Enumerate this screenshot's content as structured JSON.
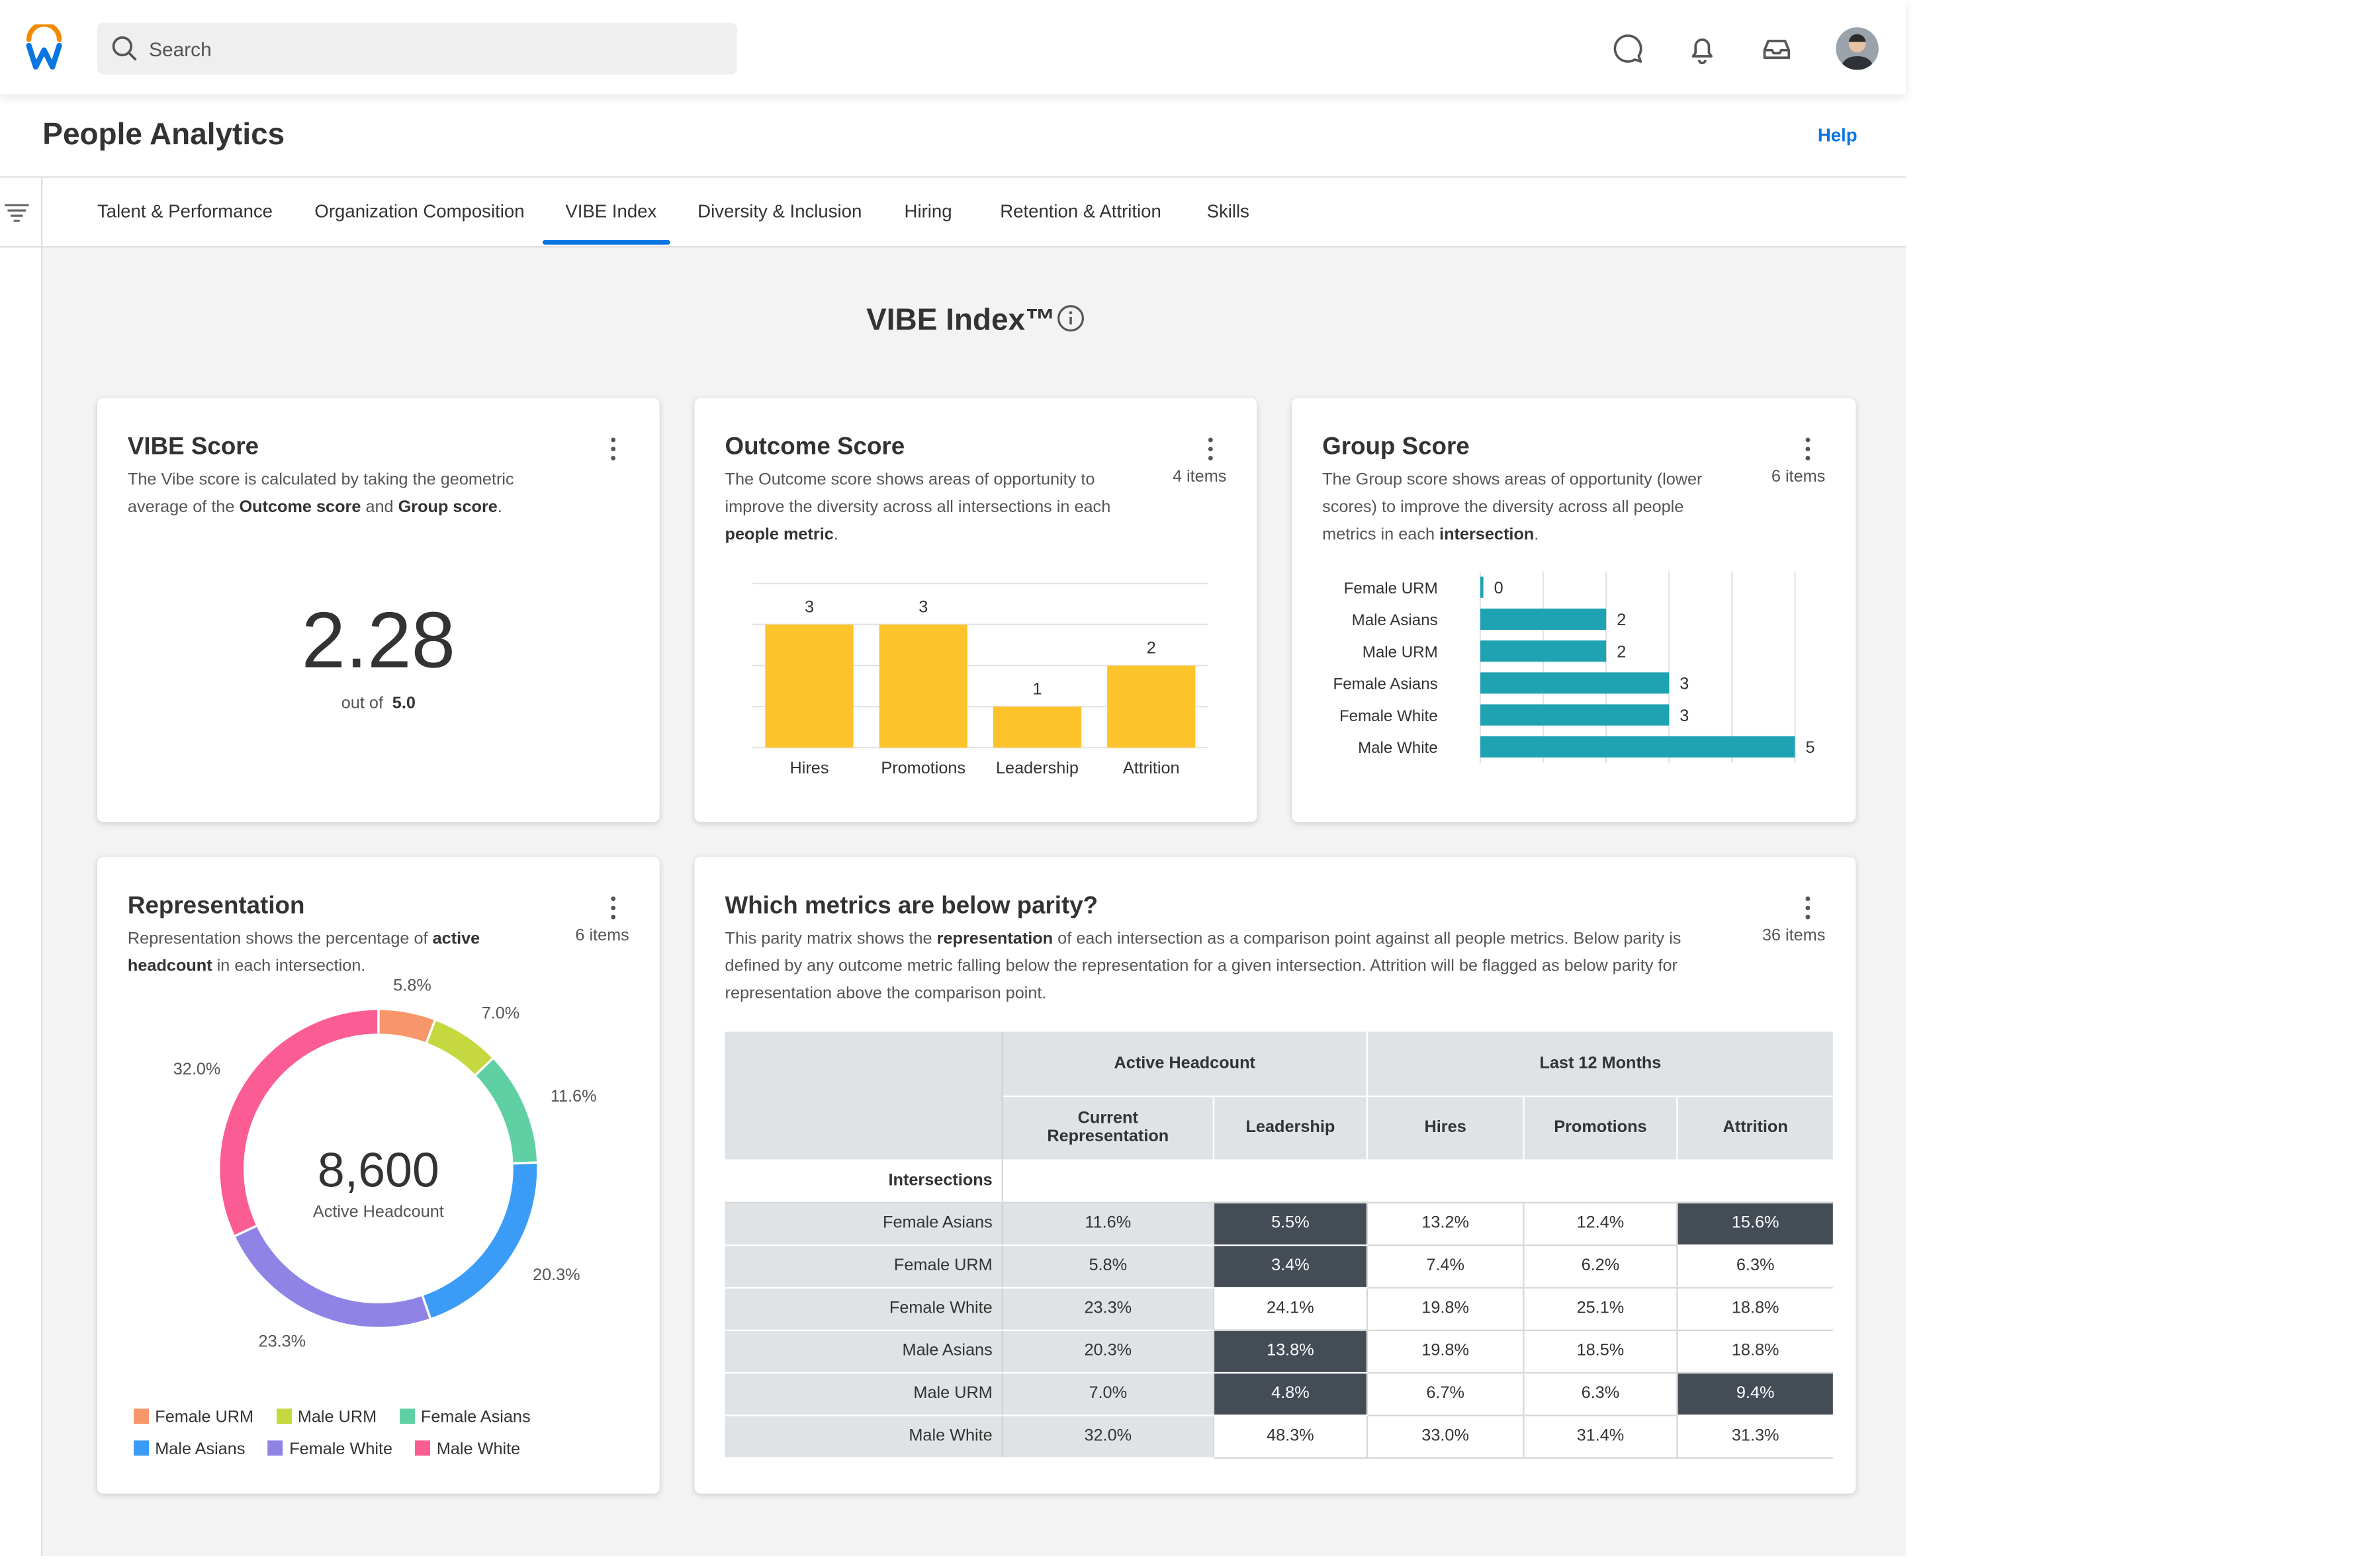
{
  "search": {
    "placeholder": "Search"
  },
  "page": {
    "title": "People Analytics",
    "help": "Help"
  },
  "tabs": [
    "Talent & Performance",
    "Organization Composition",
    "VIBE Index",
    "Diversity & Inclusion",
    "Hiring",
    "Retention & Attrition",
    "Skills"
  ],
  "active_tab": "VIBE Index",
  "section_title": "VIBE Index™",
  "vibe_card": {
    "title": "VIBE Score",
    "desc_1": "The Vibe score is calculated by taking the geometric average of the ",
    "desc_b1": "Outcome score",
    "desc_2": " and ",
    "desc_b2": "Group score",
    "desc_3": ".",
    "score": "2.28",
    "out_of_label": "out of",
    "out_of_value": "5.0"
  },
  "outcome_card": {
    "title": "Outcome Score",
    "desc_1": "The Outcome score shows areas of opportunity to improve the diversity across all intersections in each ",
    "desc_b1": "people metric",
    "desc_2": ".",
    "items": "4 items"
  },
  "group_card": {
    "title": "Group Score",
    "desc_1": "The Group score shows areas of opportunity (lower scores) to improve the diversity across all people metrics in each ",
    "desc_b1": "intersection",
    "desc_2": ".",
    "items": "6 items"
  },
  "representation_card": {
    "title": "Representation",
    "desc_1": "Representation shows the percentage of ",
    "desc_b1": "active headcount",
    "desc_2": " in each intersection.",
    "items": "6 items",
    "center_value": "8,600",
    "center_label": "Active Headcount"
  },
  "parity_card": {
    "title": "Which metrics are below parity?",
    "desc_1": "This parity matrix shows the ",
    "desc_b1": "representation",
    "desc_2": " of each intersection as a comparison point against all people metrics. Below parity is defined by any outcome metric falling below the representation for a given intersection. Attrition will be flagged as below parity for representation above the comparison point.",
    "items": "36 items",
    "group_headers": [
      "Active Headcount",
      "Last 12 Months"
    ],
    "col_headers": [
      "Current Representation",
      "Leadership",
      "Hires",
      "Promotions",
      "Attrition"
    ],
    "row_header": "Intersections",
    "rows": [
      {
        "label": "Female Asians",
        "values": [
          "11.6%",
          "5.5%",
          "13.2%",
          "12.4%",
          "15.6%"
        ],
        "flags": [
          false,
          true,
          false,
          false,
          true
        ]
      },
      {
        "label": "Female URM",
        "values": [
          "5.8%",
          "3.4%",
          "7.4%",
          "6.2%",
          "6.3%"
        ],
        "flags": [
          false,
          true,
          false,
          false,
          false
        ]
      },
      {
        "label": "Female White",
        "values": [
          "23.3%",
          "24.1%",
          "19.8%",
          "25.1%",
          "18.8%"
        ],
        "flags": [
          false,
          false,
          false,
          false,
          false
        ]
      },
      {
        "label": "Male Asians",
        "values": [
          "20.3%",
          "13.8%",
          "19.8%",
          "18.5%",
          "18.8%"
        ],
        "flags": [
          false,
          true,
          false,
          false,
          false
        ]
      },
      {
        "label": "Male URM",
        "values": [
          "7.0%",
          "4.8%",
          "6.7%",
          "6.3%",
          "9.4%"
        ],
        "flags": [
          false,
          true,
          false,
          false,
          true
        ]
      },
      {
        "label": "Male White",
        "values": [
          "32.0%",
          "48.3%",
          "33.0%",
          "31.4%",
          "31.3%"
        ],
        "flags": [
          false,
          false,
          false,
          false,
          false
        ]
      }
    ]
  },
  "colors": {
    "accent": "#0875e1",
    "bar_yellow": "#fdc32b",
    "bar_teal": "#1fa3b3",
    "below_parity": "#444d56",
    "female_urm": "#f7966b",
    "male_urm": "#c5d83f",
    "female_asians": "#5fcfa4",
    "male_asians": "#3b9cf7",
    "female_white": "#8f84e6",
    "male_white": "#fc5c94"
  },
  "chart_data": [
    {
      "type": "bar",
      "categories": [
        "Hires",
        "Promotions",
        "Leadership",
        "Attrition"
      ],
      "values": [
        3,
        3,
        1,
        2
      ],
      "title": "",
      "xlabel": "",
      "ylabel": "",
      "ylim": [
        0,
        4
      ],
      "grid": true
    },
    {
      "type": "bar",
      "orientation": "horizontal",
      "categories": [
        "Female URM",
        "Male Asians",
        "Male URM",
        "Female Asians",
        "Female White",
        "Male White"
      ],
      "values": [
        0,
        2,
        2,
        3,
        3,
        5
      ],
      "title": "",
      "xlabel": "",
      "ylabel": "",
      "xlim": [
        0,
        5
      ],
      "grid": true
    },
    {
      "type": "pie",
      "variant": "donut",
      "categories": [
        "Female URM",
        "Male URM",
        "Female Asians",
        "Male Asians",
        "Female White",
        "Male White"
      ],
      "values": [
        5.8,
        7.0,
        11.6,
        20.3,
        23.3,
        32.0
      ],
      "labels": [
        "5.8%",
        "7.0%",
        "11.6%",
        "20.3%",
        "23.3%",
        "32.0%"
      ],
      "legend": "bottom"
    }
  ]
}
